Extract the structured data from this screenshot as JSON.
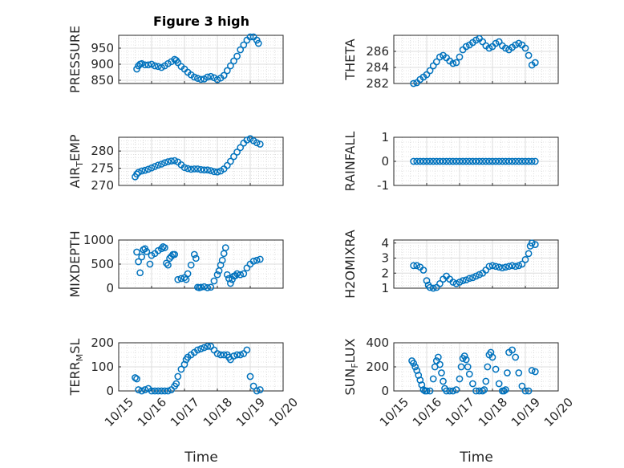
{
  "figure": {
    "title": "Figure 3 high",
    "marker_color": "#0072BD",
    "xticks": [
      "10/15",
      "10/16",
      "10/17",
      "10/18",
      "10/19",
      "10/20"
    ],
    "xlabel": "Time"
  },
  "chart_data": [
    {
      "type": "scatter",
      "ylabel": "PRESSURE",
      "ylabel_sub": "",
      "ylim": [
        840,
        990
      ],
      "yticks": [
        850,
        900,
        950
      ],
      "grid": true,
      "x": [
        15.55,
        15.6,
        15.65,
        15.7,
        15.8,
        15.9,
        16.0,
        16.1,
        16.2,
        16.3,
        16.4,
        16.5,
        16.6,
        16.7,
        16.75,
        16.8,
        16.9,
        17.0,
        17.1,
        17.2,
        17.3,
        17.4,
        17.5,
        17.6,
        17.7,
        17.8,
        17.9,
        18.0,
        18.1,
        18.2,
        18.3,
        18.4,
        18.5,
        18.6,
        18.7,
        18.8,
        18.9,
        19.0,
        19.1,
        19.2,
        19.25
      ],
      "values": [
        885,
        895,
        900,
        902,
        898,
        898,
        900,
        895,
        893,
        890,
        895,
        902,
        908,
        915,
        912,
        905,
        893,
        885,
        875,
        867,
        860,
        856,
        853,
        854,
        860,
        862,
        858,
        852,
        857,
        865,
        880,
        895,
        910,
        925,
        945,
        960,
        975,
        985,
        985,
        975,
        965
      ]
    },
    {
      "type": "scatter",
      "ylabel": "THETA",
      "ylabel_sub": "",
      "ylim": [
        282,
        288
      ],
      "yticks": [
        282,
        284,
        286
      ],
      "grid": true,
      "x": [
        15.6,
        15.7,
        15.8,
        15.9,
        16.0,
        16.1,
        16.2,
        16.3,
        16.4,
        16.5,
        16.6,
        16.7,
        16.8,
        16.9,
        17.0,
        17.1,
        17.2,
        17.3,
        17.4,
        17.5,
        17.6,
        17.7,
        17.8,
        17.9,
        18.0,
        18.1,
        18.2,
        18.3,
        18.4,
        18.5,
        18.6,
        18.7,
        18.8,
        18.9,
        19.0,
        19.1,
        19.2,
        19.3
      ],
      "values": [
        282,
        282.1,
        282.5,
        282.8,
        283.1,
        283.6,
        284.2,
        284.7,
        285.3,
        285.5,
        285.2,
        284.8,
        284.5,
        284.6,
        285.3,
        286.2,
        286.6,
        286.8,
        287.1,
        287.4,
        287.6,
        287.2,
        286.7,
        286.4,
        286.6,
        287,
        287.2,
        286.7,
        286.4,
        286.2,
        286.5,
        286.8,
        287,
        286.8,
        286.4,
        285.5,
        284.3,
        284.6
      ]
    },
    {
      "type": "scatter",
      "ylabel": "AIR",
      "ylabel_sub": "T",
      "ylabel_tail": "EMP",
      "ylim": [
        270,
        284
      ],
      "yticks": [
        270,
        275,
        280
      ],
      "grid": true,
      "x": [
        15.5,
        15.55,
        15.6,
        15.7,
        15.8,
        15.9,
        16.0,
        16.1,
        16.2,
        16.3,
        16.4,
        16.5,
        16.6,
        16.7,
        16.8,
        16.9,
        17.0,
        17.1,
        17.2,
        17.3,
        17.4,
        17.5,
        17.6,
        17.7,
        17.8,
        17.9,
        18.0,
        18.1,
        18.2,
        18.3,
        18.4,
        18.5,
        18.6,
        18.7,
        18.8,
        18.9,
        19.0,
        19.1,
        19.2,
        19.3
      ],
      "values": [
        272.5,
        273.3,
        273.8,
        274.2,
        274.4,
        274.7,
        275.1,
        275.5,
        275.9,
        276.2,
        276.6,
        276.9,
        277.1,
        277.2,
        276.8,
        276.0,
        275.2,
        274.9,
        274.7,
        274.8,
        274.8,
        274.6,
        274.5,
        274.5,
        274.3,
        274.0,
        273.9,
        274.2,
        274.8,
        275.8,
        277.0,
        278.4,
        279.7,
        281.0,
        282.3,
        283.2,
        283.6,
        283.0,
        282.4,
        282.0
      ]
    },
    {
      "type": "scatter",
      "ylabel": "RAINFALL",
      "ylabel_sub": "",
      "ylim": [
        -1,
        1
      ],
      "yticks": [
        -1,
        0,
        1
      ],
      "grid": true,
      "x": [
        15.6,
        15.7,
        15.8,
        15.9,
        16.0,
        16.1,
        16.2,
        16.3,
        16.4,
        16.5,
        16.6,
        16.7,
        16.8,
        16.9,
        17.0,
        17.1,
        17.2,
        17.3,
        17.4,
        17.5,
        17.6,
        17.7,
        17.8,
        17.9,
        18.0,
        18.1,
        18.2,
        18.3,
        18.4,
        18.5,
        18.6,
        18.7,
        18.8,
        18.9,
        19.0,
        19.1,
        19.2,
        19.3
      ],
      "values": [
        0,
        0,
        0,
        0,
        0,
        0,
        0,
        0,
        0,
        0,
        0,
        0,
        0,
        0,
        0,
        0,
        0,
        0,
        0,
        0,
        0,
        0,
        0,
        0,
        0,
        0,
        0,
        0,
        0,
        0,
        0,
        0,
        0,
        0,
        0,
        0,
        0,
        0
      ]
    },
    {
      "type": "scatter",
      "ylabel": "MIXDEPTH",
      "ylabel_sub": "",
      "ylim": [
        0,
        1000
      ],
      "yticks": [
        0,
        500,
        1000
      ],
      "grid": true,
      "x": [
        15.55,
        15.6,
        15.65,
        15.7,
        15.75,
        15.8,
        15.85,
        15.95,
        16.0,
        16.1,
        16.2,
        16.3,
        16.35,
        16.4,
        16.45,
        16.5,
        16.55,
        16.6,
        16.65,
        16.7,
        16.8,
        16.9,
        17.0,
        17.05,
        17.1,
        17.2,
        17.3,
        17.35,
        17.4,
        17.45,
        17.5,
        17.6,
        17.7,
        17.8,
        17.9,
        18.0,
        18.05,
        18.1,
        18.15,
        18.2,
        18.25,
        18.3,
        18.35,
        18.4,
        18.45,
        18.5,
        18.55,
        18.6,
        18.7,
        18.8,
        18.9,
        19.0,
        19.1,
        19.2,
        19.3
      ],
      "values": [
        750,
        550,
        320,
        650,
        800,
        820,
        760,
        500,
        680,
        720,
        780,
        820,
        860,
        840,
        520,
        480,
        620,
        660,
        700,
        700,
        180,
        200,
        220,
        180,
        300,
        480,
        700,
        620,
        20,
        10,
        20,
        30,
        10,
        20,
        150,
        280,
        360,
        480,
        580,
        720,
        840,
        280,
        200,
        100,
        180,
        250,
        260,
        300,
        280,
        300,
        420,
        500,
        560,
        580,
        600
      ]
    },
    {
      "type": "scatter",
      "ylabel": "H2OMIXRA",
      "ylabel_sub": "",
      "ylim": [
        1,
        4.2
      ],
      "yticks": [
        1,
        2,
        3,
        4
      ],
      "grid": true,
      "x": [
        15.6,
        15.7,
        15.8,
        15.9,
        16.0,
        16.05,
        16.1,
        16.2,
        16.3,
        16.4,
        16.5,
        16.6,
        16.7,
        16.8,
        16.9,
        17.0,
        17.1,
        17.2,
        17.3,
        17.4,
        17.5,
        17.6,
        17.7,
        17.8,
        17.9,
        18.0,
        18.1,
        18.2,
        18.3,
        18.4,
        18.5,
        18.6,
        18.7,
        18.8,
        18.9,
        19.0,
        19.1,
        19.15,
        19.2,
        19.3
      ],
      "values": [
        2.5,
        2.5,
        2.4,
        2.2,
        1.5,
        1.2,
        1.05,
        1.0,
        1.05,
        1.3,
        1.6,
        1.8,
        1.6,
        1.4,
        1.3,
        1.4,
        1.5,
        1.55,
        1.65,
        1.7,
        1.8,
        1.9,
        2.0,
        2.2,
        2.45,
        2.5,
        2.45,
        2.4,
        2.35,
        2.4,
        2.45,
        2.5,
        2.45,
        2.5,
        2.6,
        2.9,
        3.3,
        3.8,
        4.0,
        3.9
      ]
    },
    {
      "type": "scatter",
      "ylabel": "TERR",
      "ylabel_sub": "M",
      "ylabel_tail": "SL",
      "ylim": [
        0,
        200
      ],
      "yticks": [
        0,
        100,
        200
      ],
      "grid": true,
      "x": [
        15.5,
        15.55,
        15.6,
        15.7,
        15.8,
        15.9,
        16.0,
        16.1,
        16.2,
        16.3,
        16.4,
        16.5,
        16.6,
        16.7,
        16.75,
        16.8,
        16.9,
        17.0,
        17.05,
        17.1,
        17.2,
        17.3,
        17.4,
        17.5,
        17.6,
        17.7,
        17.8,
        17.9,
        18.0,
        18.1,
        18.2,
        18.3,
        18.35,
        18.4,
        18.5,
        18.6,
        18.7,
        18.8,
        18.9,
        19.0,
        19.1,
        19.2,
        19.3
      ],
      "values": [
        55,
        50,
        5,
        0,
        5,
        10,
        0,
        0,
        0,
        0,
        0,
        0,
        5,
        20,
        30,
        60,
        90,
        110,
        130,
        140,
        150,
        160,
        170,
        175,
        180,
        185,
        185,
        170,
        155,
        150,
        150,
        150,
        140,
        130,
        145,
        150,
        150,
        155,
        170,
        60,
        20,
        0,
        5
      ]
    },
    {
      "type": "scatter",
      "ylabel": "SUN",
      "ylabel_sub": "F",
      "ylabel_tail": "LUX",
      "ylim": [
        0,
        400
      ],
      "yticks": [
        0,
        200,
        400
      ],
      "grid": true,
      "x": [
        15.55,
        15.6,
        15.65,
        15.7,
        15.75,
        15.8,
        15.85,
        15.9,
        15.95,
        16.0,
        16.1,
        16.2,
        16.25,
        16.3,
        16.35,
        16.4,
        16.45,
        16.5,
        16.55,
        16.6,
        16.7,
        16.8,
        16.9,
        17.0,
        17.05,
        17.1,
        17.15,
        17.2,
        17.25,
        17.3,
        17.4,
        17.5,
        17.6,
        17.7,
        17.75,
        17.8,
        17.85,
        17.9,
        17.95,
        18.0,
        18.1,
        18.2,
        18.3,
        18.35,
        18.4,
        18.45,
        18.5,
        18.6,
        18.7,
        18.8,
        18.9,
        19.0,
        19.1,
        19.2,
        19.3
      ],
      "values": [
        250,
        230,
        200,
        170,
        130,
        90,
        50,
        10,
        0,
        0,
        0,
        100,
        200,
        250,
        280,
        220,
        150,
        80,
        20,
        0,
        0,
        0,
        10,
        100,
        200,
        270,
        290,
        260,
        200,
        140,
        60,
        0,
        0,
        0,
        10,
        80,
        200,
        300,
        320,
        280,
        180,
        60,
        0,
        0,
        10,
        150,
        320,
        340,
        280,
        150,
        40,
        0,
        0,
        170,
        160
      ]
    }
  ]
}
